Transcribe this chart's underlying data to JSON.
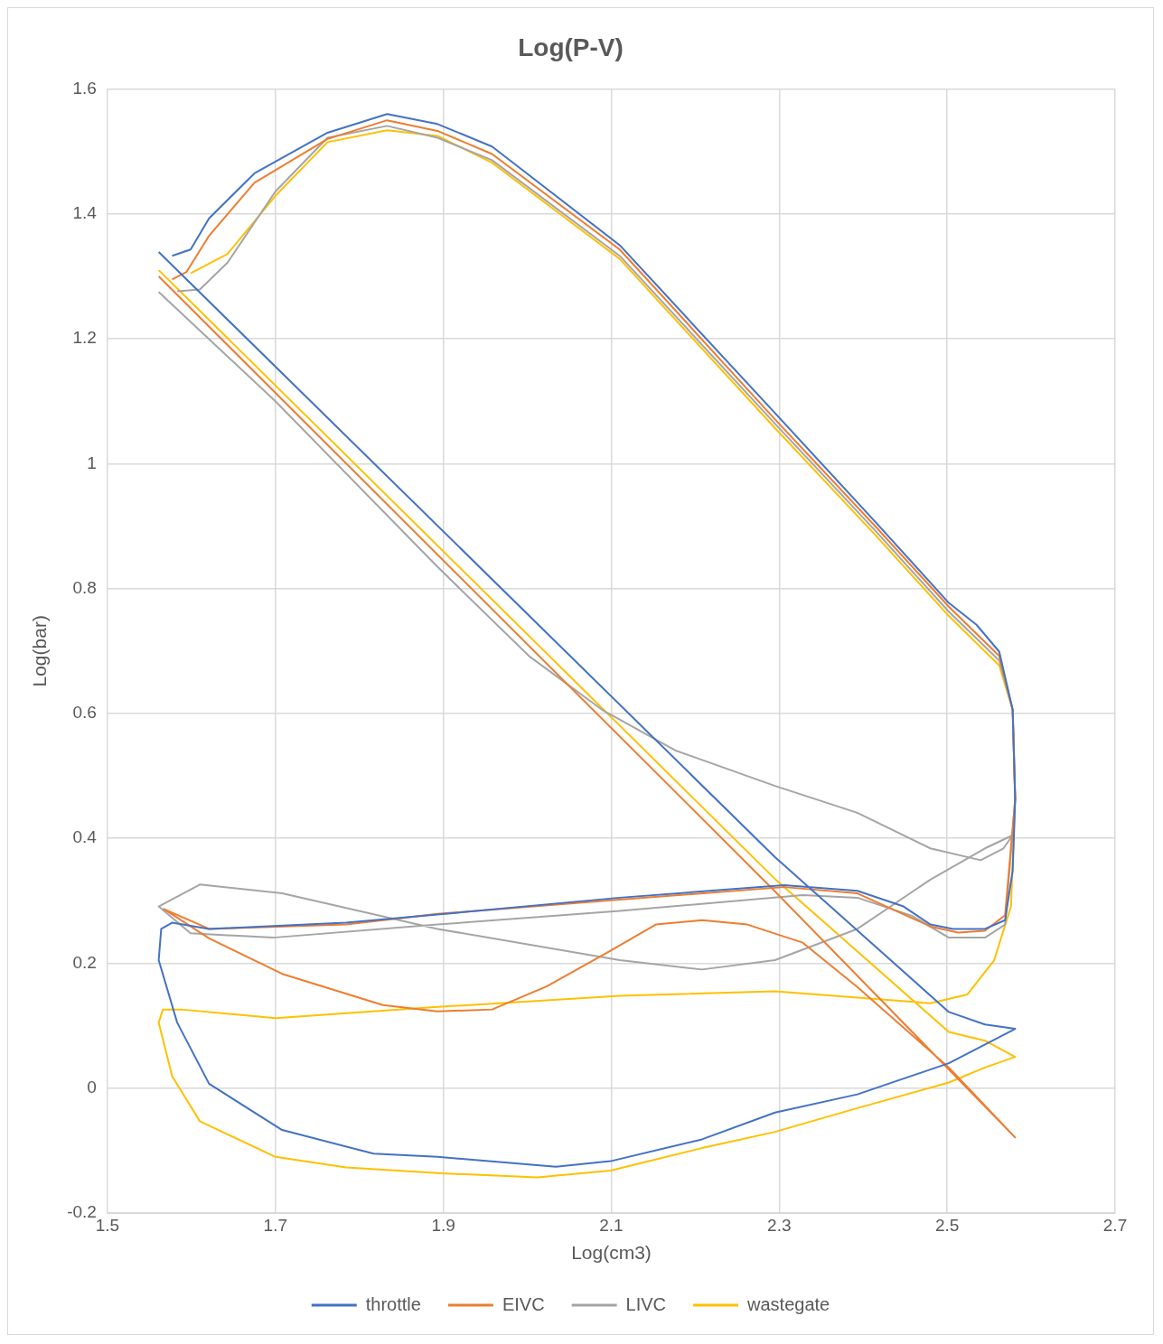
{
  "chart_data": {
    "type": "line",
    "title": "Log(P-V)",
    "xlabel": "Log(cm3)",
    "ylabel": "Log(bar)",
    "xlim": [
      1.5,
      2.7
    ],
    "xticks": [
      1.5,
      1.7,
      1.9,
      2.1,
      2.3,
      2.5,
      2.7
    ],
    "ylim": [
      -0.2,
      1.6
    ],
    "yticks": [
      -0.2,
      0,
      0.2,
      0.4,
      0.6,
      0.8,
      1,
      1.2,
      1.4,
      1.6
    ],
    "grid": true,
    "legend": "bottom",
    "marker": "none",
    "line_style": "solid",
    "series": [
      {
        "name": "throttle",
        "color": "#4472c4",
        "x": [
          1.561,
          2.295,
          2.502,
          2.545,
          2.581,
          2.502,
          2.393,
          2.295,
          2.208,
          2.099,
          2.034,
          1.893,
          1.817,
          1.708,
          1.621,
          1.583,
          1.561,
          1.564,
          1.577,
          1.621,
          1.784,
          1.893,
          2.11,
          2.306,
          2.393,
          2.448,
          2.48,
          2.507,
          2.545,
          2.569,
          2.578,
          2.581,
          2.578,
          2.562,
          2.535,
          2.502,
          2.415,
          2.295,
          2.11,
          1.958,
          1.893,
          1.833,
          1.762,
          1.675,
          1.621,
          1.599,
          1.577
        ],
        "values": [
          1.339,
          0.37,
          0.122,
          0.102,
          0.095,
          0.04,
          -0.01,
          -0.039,
          -0.082,
          -0.117,
          -0.126,
          -0.11,
          -0.105,
          -0.067,
          0.007,
          0.105,
          0.205,
          0.255,
          0.265,
          0.255,
          0.265,
          0.278,
          0.305,
          0.325,
          0.316,
          0.291,
          0.262,
          0.255,
          0.255,
          0.269,
          0.348,
          0.463,
          0.606,
          0.699,
          0.742,
          0.777,
          0.906,
          1.081,
          1.35,
          1.508,
          1.544,
          1.56,
          1.53,
          1.465,
          1.393,
          1.343,
          1.333
        ]
      },
      {
        "name": "EIVC",
        "color": "#ed7d31",
        "x": [
          1.561,
          2.295,
          2.581,
          2.502,
          2.393,
          2.328,
          2.262,
          2.208,
          2.153,
          2.099,
          2.023,
          1.958,
          1.893,
          1.828,
          1.708,
          1.621,
          1.567,
          1.621,
          1.784,
          1.893,
          2.11,
          2.306,
          2.393,
          2.48,
          2.513,
          2.545,
          2.569,
          2.581,
          2.578,
          2.562,
          2.502,
          2.415,
          2.295,
          2.11,
          1.958,
          1.893,
          1.833,
          1.762,
          1.675,
          1.621,
          1.594,
          1.577
        ],
        "values": [
          1.3,
          0.315,
          -0.079,
          0.033,
          0.162,
          0.233,
          0.262,
          0.269,
          0.262,
          0.22,
          0.163,
          0.126,
          0.123,
          0.133,
          0.183,
          0.24,
          0.287,
          0.255,
          0.262,
          0.279,
          0.302,
          0.322,
          0.312,
          0.259,
          0.249,
          0.252,
          0.277,
          0.463,
          0.606,
          0.692,
          0.771,
          0.899,
          1.071,
          1.343,
          1.496,
          1.533,
          1.55,
          1.52,
          1.45,
          1.365,
          1.307,
          1.295
        ]
      },
      {
        "name": "LIVC",
        "color": "#a5a5a5",
        "x": [
          1.561,
          1.7,
          1.893,
          2.002,
          2.089,
          2.176,
          2.295,
          2.393,
          2.48,
          2.54,
          2.567,
          2.578,
          2.545,
          2.48,
          2.393,
          2.295,
          2.208,
          2.11,
          1.893,
          1.708,
          1.61,
          1.561,
          1.599,
          1.697,
          1.893,
          2.11,
          2.328,
          2.393,
          2.458,
          2.502,
          2.545,
          2.569,
          2.581,
          2.578,
          2.562,
          2.502,
          2.415,
          2.295,
          2.11,
          1.958,
          1.893,
          1.833,
          1.762,
          1.7,
          1.643,
          1.61,
          1.583
        ],
        "values": [
          1.275,
          1.1,
          0.835,
          0.692,
          0.606,
          0.541,
          0.484,
          0.441,
          0.384,
          0.365,
          0.384,
          0.405,
          0.384,
          0.334,
          0.255,
          0.205,
          0.19,
          0.205,
          0.255,
          0.312,
          0.326,
          0.291,
          0.248,
          0.241,
          0.262,
          0.284,
          0.309,
          0.305,
          0.276,
          0.241,
          0.241,
          0.262,
          0.463,
          0.606,
          0.685,
          0.763,
          0.892,
          1.064,
          1.333,
          1.486,
          1.522,
          1.541,
          1.522,
          1.436,
          1.322,
          1.279,
          1.276
        ]
      },
      {
        "name": "wastegate",
        "color": "#ffc000",
        "x": [
          1.561,
          2.295,
          2.502,
          2.545,
          2.581,
          2.545,
          2.502,
          2.393,
          2.295,
          2.208,
          2.099,
          2.012,
          1.893,
          1.784,
          1.7,
          1.61,
          1.577,
          1.561,
          1.566,
          1.588,
          1.7,
          1.893,
          2.11,
          2.295,
          2.393,
          2.48,
          2.524,
          2.556,
          2.576,
          2.581,
          2.578,
          2.562,
          2.502,
          2.415,
          2.295,
          2.11,
          1.958,
          1.893,
          1.833,
          1.762,
          1.7,
          1.643,
          1.599
        ],
        "values": [
          1.31,
          0.335,
          0.09,
          0.076,
          0.05,
          0.033,
          0.009,
          -0.032,
          -0.07,
          -0.096,
          -0.132,
          -0.143,
          -0.136,
          -0.127,
          -0.11,
          -0.053,
          0.019,
          0.105,
          0.126,
          0.126,
          0.112,
          0.13,
          0.148,
          0.155,
          0.145,
          0.136,
          0.15,
          0.205,
          0.291,
          0.463,
          0.606,
          0.677,
          0.756,
          0.885,
          1.057,
          1.328,
          1.482,
          1.525,
          1.534,
          1.515,
          1.429,
          1.336,
          1.305
        ]
      }
    ]
  }
}
